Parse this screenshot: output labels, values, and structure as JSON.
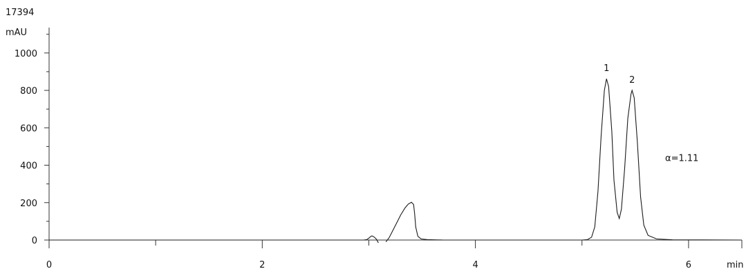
{
  "sample_id": "17394",
  "chart_data": {
    "type": "line",
    "title": "",
    "xlabel": "min",
    "ylabel": "mAU",
    "xlim": [
      0,
      6.5
    ],
    "ylim": [
      0,
      1050
    ],
    "x_major_ticks": [
      0,
      2,
      4,
      6
    ],
    "x_tick_labels": [
      "0",
      "2",
      "4",
      "6"
    ],
    "x_minor_ticks": [
      1,
      3,
      5
    ],
    "y_major_ticks": [
      0,
      200,
      400,
      600,
      800,
      1000
    ],
    "y_tick_labels": [
      "0",
      "200",
      "400",
      "600",
      "800",
      "1000"
    ],
    "y_minor_ticks": [
      100,
      300,
      500,
      700,
      900,
      1100
    ],
    "grid": false,
    "series": [
      {
        "segments": [
          [
            [
              0,
              0
            ],
            [
              2.95,
              0
            ],
            [
              2.98,
              2
            ],
            [
              3.0,
              10
            ],
            [
              3.02,
              20
            ],
            [
              3.03,
              22
            ],
            [
              3.05,
              16
            ],
            [
              3.07,
              5
            ],
            [
              3.09,
              -15
            ]
          ],
          [
            [
              3.16,
              -10
            ],
            [
              3.19,
              12
            ],
            [
              3.22,
              45
            ],
            [
              3.26,
              90
            ],
            [
              3.3,
              135
            ],
            [
              3.34,
              172
            ],
            [
              3.37,
              192
            ],
            [
              3.4,
              202
            ],
            [
              3.42,
              190
            ],
            [
              3.43,
              140
            ],
            [
              3.44,
              70
            ],
            [
              3.46,
              20
            ],
            [
              3.49,
              6
            ],
            [
              3.55,
              2
            ],
            [
              3.7,
              0
            ],
            [
              5.0,
              0
            ],
            [
              5.05,
              2
            ],
            [
              5.09,
              15
            ],
            [
              5.12,
              70
            ],
            [
              5.15,
              260
            ],
            [
              5.18,
              560
            ],
            [
              5.21,
              800
            ],
            [
              5.23,
              862
            ],
            [
              5.25,
              820
            ],
            [
              5.28,
              580
            ],
            [
              5.3,
              320
            ],
            [
              5.33,
              148
            ],
            [
              5.35,
              115
            ],
            [
              5.37,
              165
            ],
            [
              5.4,
              380
            ],
            [
              5.43,
              650
            ],
            [
              5.46,
              780
            ],
            [
              5.47,
              800
            ],
            [
              5.49,
              760
            ],
            [
              5.52,
              520
            ],
            [
              5.55,
              230
            ],
            [
              5.58,
              80
            ],
            [
              5.62,
              25
            ],
            [
              5.7,
              6
            ],
            [
              5.85,
              1
            ],
            [
              6.5,
              0
            ]
          ]
        ]
      }
    ],
    "annotations": [
      {
        "text": "1",
        "x": 5.23,
        "y": 862
      },
      {
        "text": "2",
        "x": 5.47,
        "y": 800
      },
      {
        "text": "α=1.11",
        "x": 5.78,
        "y": 440
      }
    ]
  }
}
